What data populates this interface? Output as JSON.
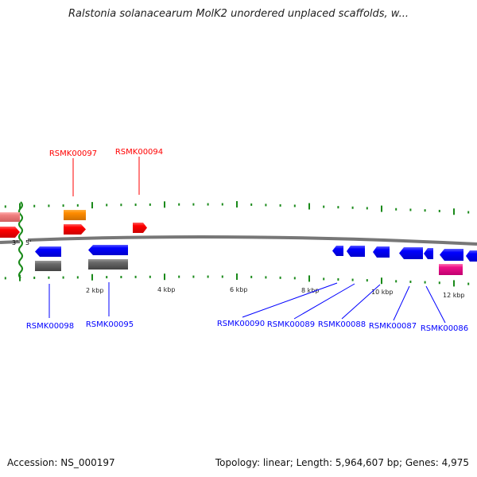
{
  "title": "Ralstonia solanacearum MolK2 unordered unplaced scaffolds, w...",
  "footer": {
    "accession": "Accession: NS_000197",
    "summary": "Topology: linear; Length: 5,964,607 bp; Genes: 4,975"
  },
  "strand_labels": {
    "three_prime": "3'",
    "five_prime": "5'"
  },
  "scale_labels": [
    "2 kbp",
    "4 kbp",
    "6 kbp",
    "8 kbp",
    "10 kbp",
    "12 kbp"
  ],
  "genes_forward": [
    "RSMK00097",
    "RSMK00094"
  ],
  "genes_reverse": [
    "RSMK00098",
    "RSMK00095",
    "RSMK00090",
    "RSMK00089",
    "RSMK00088",
    "RSMK00087",
    "RSMK00086"
  ],
  "colors": {
    "forward": "#ff0000",
    "reverse": "#0000ff",
    "pseudo": "#ff8c00",
    "rna": "#ee1188",
    "tick": "#1a8a1a",
    "backbone": "#808080"
  }
}
